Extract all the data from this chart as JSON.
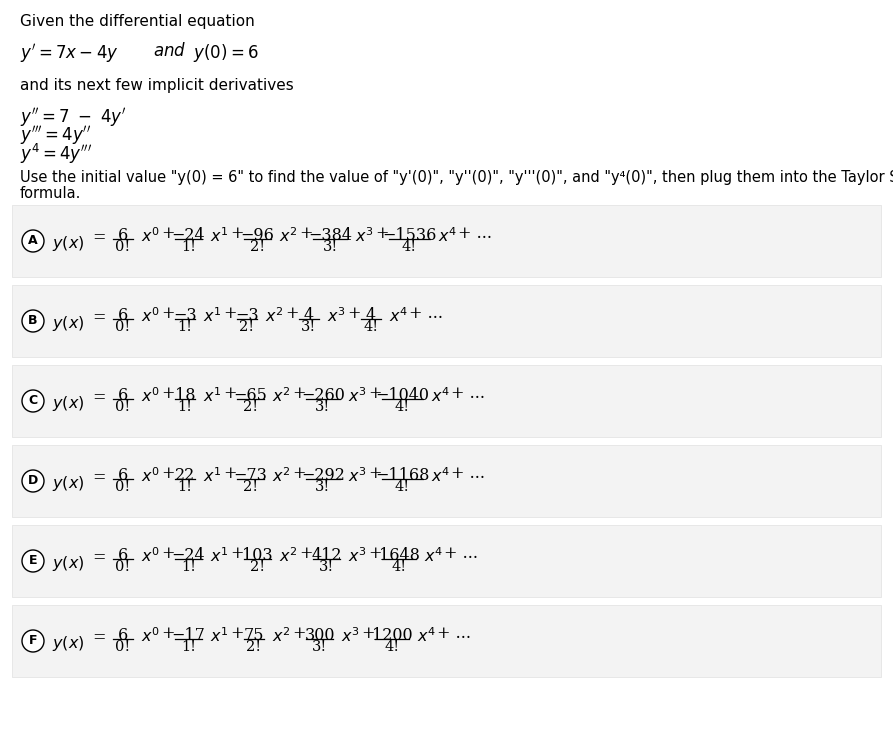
{
  "bg_color": "#ffffff",
  "text_color": "#000000",
  "options": [
    {
      "label": "A",
      "c0": "6",
      "d0": "0!",
      "c1": "−24",
      "d1": "1!",
      "c2": "−96",
      "d2": "2!",
      "c3": "−384",
      "d3": "3!",
      "c4": "−1536",
      "d4": "4!"
    },
    {
      "label": "B",
      "c0": "6",
      "d0": "0!",
      "c1": "−3",
      "d1": "1!",
      "c2": "−3",
      "d2": "2!",
      "c3": "4",
      "d3": "3!",
      "c4": "4",
      "d4": "4!"
    },
    {
      "label": "C",
      "c0": "6",
      "d0": "0!",
      "c1": "18",
      "d1": "1!",
      "c2": "−65",
      "d2": "2!",
      "c3": "−260",
      "d3": "3!",
      "c4": "−1040",
      "d4": "4!"
    },
    {
      "label": "D",
      "c0": "6",
      "d0": "0!",
      "c1": "22",
      "d1": "1!",
      "c2": "−73",
      "d2": "2!",
      "c3": "−292",
      "d3": "3!",
      "c4": "−1168",
      "d4": "4!"
    },
    {
      "label": "E",
      "c0": "6",
      "d0": "0!",
      "c1": "−24",
      "d1": "1!",
      "c2": "103",
      "d2": "2!",
      "c3": "412",
      "d3": "3!",
      "c4": "1648",
      "d4": "4!"
    },
    {
      "label": "F",
      "c0": "6",
      "d0": "0!",
      "c1": "−17",
      "d1": "1!",
      "c2": "75",
      "d2": "2!",
      "c3": "300",
      "d3": "3!",
      "c4": "1200",
      "d4": "4!"
    }
  ]
}
